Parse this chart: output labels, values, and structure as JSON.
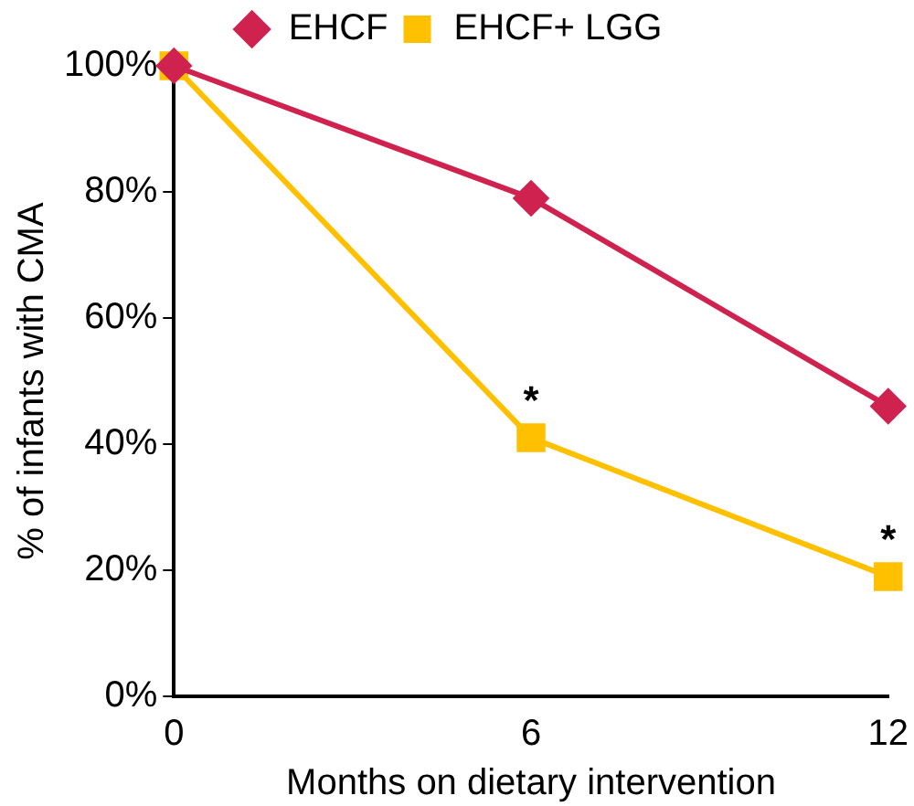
{
  "chart_data": {
    "type": "line",
    "xlabel": "Months on dietary intervention",
    "ylabel": "% of infants with CMA",
    "x": [
      0,
      6,
      12
    ],
    "xlim": [
      0,
      12
    ],
    "xticks": [
      0,
      6,
      12
    ],
    "ylim": [
      0,
      100
    ],
    "yticks": [
      {
        "value": 0,
        "label": "0%"
      },
      {
        "value": 20,
        "label": "20%"
      },
      {
        "value": 40,
        "label": "40%"
      },
      {
        "value": 60,
        "label": "60%"
      },
      {
        "value": 80,
        "label": "80%"
      },
      {
        "value": 100,
        "label": "100%"
      }
    ],
    "grid": false,
    "legend": "top",
    "series": [
      {
        "name": "EHCF",
        "color": "#d0224e",
        "marker": "diamond",
        "values": [
          100,
          79,
          46
        ]
      },
      {
        "name": "EHCF+ LGG",
        "color": "#ffc000",
        "marker": "square",
        "values": [
          100,
          41,
          19
        ]
      }
    ],
    "annotations": [
      {
        "text": "*",
        "x": 6,
        "y": 41
      },
      {
        "text": "*",
        "x": 12,
        "y": 19
      }
    ]
  }
}
